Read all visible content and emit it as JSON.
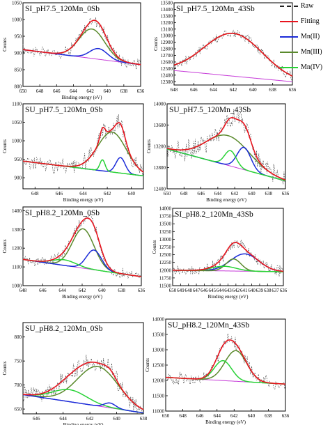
{
  "legend": {
    "items": [
      {
        "label": "Raw",
        "color": "#222222",
        "style": "dashed"
      },
      {
        "label": "Fitting",
        "color": "#e8141e",
        "style": "solid"
      },
      {
        "label": "Mn(II)",
        "color": "#1a2ad8",
        "style": "solid"
      },
      {
        "label": "Mn(III)",
        "color": "#5a8a2c",
        "style": "solid"
      },
      {
        "label": "Mn(IV)",
        "color": "#27d235",
        "style": "solid"
      }
    ]
  },
  "chart_data": [
    {
      "type": "line",
      "title": "SI_pH7.5_120Mn_0Sb",
      "xlabel": "Binding energy (eV)",
      "ylabel": "Counts",
      "xlim": [
        650,
        636
      ],
      "ylim": [
        800,
        1050
      ],
      "xticks": [
        650,
        648,
        646,
        644,
        642,
        640,
        638,
        636
      ],
      "yticks": [
        800,
        850,
        900,
        950,
        1000,
        1050
      ],
      "background": {
        "start": 910,
        "end": 865
      },
      "peaks": [
        {
          "name": "Mn(III)",
          "color": "#5a8a2c",
          "center": 641.8,
          "fwhm": 3.6,
          "height": 88
        },
        {
          "name": "Mn(II)",
          "color": "#1a2ad8",
          "center": 641.0,
          "fwhm": 2.5,
          "height": 32
        }
      ],
      "noise": 14
    },
    {
      "type": "line",
      "title": "SI_pH7.5_120Mn_43Sb",
      "xlabel": "",
      "ylabel": "Counts",
      "xlim": [
        648,
        636
      ],
      "ylim": [
        12250,
        13500
      ],
      "xticks": [
        648,
        646,
        644,
        642,
        640,
        638,
        636
      ],
      "yticks": [
        12300,
        12400,
        12500,
        12600,
        12700,
        12800,
        12900,
        13000,
        13100,
        13200,
        13300,
        13400,
        13500
      ],
      "background": {
        "start": 12470,
        "end": 12300
      },
      "peaks": [
        {
          "name": "Mn(III)",
          "color": "#5a8a2c",
          "center": 642.0,
          "fwhm": 7.0,
          "height": 650
        }
      ],
      "noise": 70
    },
    {
      "type": "line",
      "title": "SU_pH7.5_120Mn_0Sb",
      "xlabel": "Binding energy (eV)",
      "ylabel": "Counts",
      "xlim": [
        649,
        639
      ],
      "ylim": [
        870,
        1100
      ],
      "xticks": [
        648,
        646,
        644,
        642,
        640
      ],
      "yticks": [
        900,
        950,
        1000,
        1050,
        1100
      ],
      "background": {
        "start": 945,
        "end": 905
      },
      "peaks": [
        {
          "name": "Mn(III)",
          "color": "#5a8a2c",
          "center": 641.6,
          "fwhm": 2.8,
          "height": 108
        },
        {
          "name": "Mn(II)",
          "color": "#1a2ad8",
          "center": 640.9,
          "fwhm": 0.9,
          "height": 42
        },
        {
          "name": "Mn(IV)",
          "color": "#27d235",
          "center": 642.4,
          "fwhm": 0.5,
          "height": 30
        }
      ],
      "noise": 18
    },
    {
      "type": "line",
      "title": "SU_pH7.5_120Mn_43Sb",
      "xlabel": "Binding energy (eV)",
      "ylabel": "Counts",
      "xlim": [
        650,
        636
      ],
      "ylim": [
        12400,
        14000
      ],
      "xticks": [
        650,
        648,
        646,
        644,
        642,
        640,
        638,
        636
      ],
      "yticks": [
        12400,
        12800,
        13200,
        13600,
        14000
      ],
      "background": {
        "start": 13150,
        "end": 12550
      },
      "peaks": [
        {
          "name": "Mn(III)",
          "color": "#5a8a2c",
          "center": 642.8,
          "fwhm": 6.0,
          "height": 560
        },
        {
          "name": "Mn(II)",
          "color": "#1a2ad8",
          "center": 640.9,
          "fwhm": 1.9,
          "height": 420
        },
        {
          "name": "Mn(IV)",
          "color": "#27d235",
          "center": 642.5,
          "fwhm": 1.6,
          "height": 290
        }
      ],
      "noise": 150
    },
    {
      "type": "line",
      "title": "SI_pH8.2_120Mn_0Sb",
      "xlabel": "Binding energy (eV)",
      "ylabel": "Counts",
      "xlim": [
        648,
        636
      ],
      "ylim": [
        1000,
        1420
      ],
      "xticks": [
        648,
        646,
        644,
        642,
        640,
        638,
        636
      ],
      "yticks": [
        1000,
        1100,
        1200,
        1300,
        1400
      ],
      "background": {
        "start": 1140,
        "end": 1048
      },
      "peaks": [
        {
          "name": "Mn(III)",
          "color": "#5a8a2c",
          "center": 641.9,
          "fwhm": 2.6,
          "height": 210
        },
        {
          "name": "Mn(II)",
          "color": "#1a2ad8",
          "center": 640.8,
          "fwhm": 1.8,
          "height": 105
        },
        {
          "name": "Mn(IV)",
          "color": "#27d235",
          "center": 643.8,
          "fwhm": 2.8,
          "height": 30
        }
      ],
      "noise": 22
    },
    {
      "type": "line",
      "title": "SI_pH8.2_120Mn_43Sb",
      "xlabel": "Binding energy (eV)",
      "ylabel": "Counts",
      "xlim": [
        650,
        636
      ],
      "ylim": [
        11500,
        14000
      ],
      "xticks": [
        650,
        649,
        648,
        647,
        646,
        645,
        644,
        643,
        642,
        641,
        640,
        639,
        638,
        637,
        636
      ],
      "yticks": [
        11500,
        11750,
        12000,
        12250,
        12500,
        12750,
        13000,
        13250,
        13500,
        13750,
        14000
      ],
      "background": {
        "start": 12000,
        "end": 11950
      },
      "peaks": [
        {
          "name": "Mn(II)",
          "color": "#1a2ad8",
          "center": 640.9,
          "fwhm": 4.2,
          "height": 560
        },
        {
          "name": "Mn(III)",
          "color": "#5a8a2c",
          "center": 642.3,
          "fwhm": 2.2,
          "height": 390
        },
        {
          "name": "Mn(IV)",
          "color": "#27d235",
          "center": 643.5,
          "fwhm": 3.6,
          "height": 150
        }
      ],
      "noise": 140
    },
    {
      "type": "line",
      "title": "SU_pH8.2_120Mn_0Sb",
      "xlabel": "Binding energy (eV)",
      "ylabel": "Counts",
      "xlim": [
        647,
        638
      ],
      "ylim": [
        640,
        830
      ],
      "xticks": [
        646,
        644,
        642,
        640,
        638
      ],
      "yticks": [
        650,
        700,
        750,
        800
      ],
      "background": {
        "start": 680,
        "end": 642
      },
      "peaks": [
        {
          "name": "Mn(III)",
          "color": "#5a8a2c",
          "center": 641.4,
          "fwhm": 3.6,
          "height": 82
        },
        {
          "name": "Mn(IV)",
          "color": "#27d235",
          "center": 643.5,
          "fwhm": 3.0,
          "height": 25
        },
        {
          "name": "Mn(II)",
          "color": "#1a2ad8",
          "center": 640.5,
          "fwhm": 1.0,
          "height": 10
        }
      ],
      "noise": 14
    },
    {
      "type": "line",
      "title": "SU_pH8.2_120Mn_43Sb",
      "xlabel": "Binding energy (eV)",
      "ylabel": "Counts",
      "xlim": [
        650,
        636
      ],
      "ylim": [
        11000,
        14000
      ],
      "xticks": [
        650,
        648,
        646,
        644,
        642,
        640,
        638,
        636
      ],
      "yticks": [
        11000,
        11500,
        12000,
        12500,
        13000,
        13500,
        14000
      ],
      "background": {
        "start": 12100,
        "end": 11880
      },
      "peaks": [
        {
          "name": "Mn(III)",
          "color": "#5a8a2c",
          "center": 641.8,
          "fwhm": 3.0,
          "height": 1000
        },
        {
          "name": "Mn(IV)",
          "color": "#27d235",
          "center": 643.3,
          "fwhm": 2.4,
          "height": 650
        }
      ],
      "noise": 170
    }
  ]
}
